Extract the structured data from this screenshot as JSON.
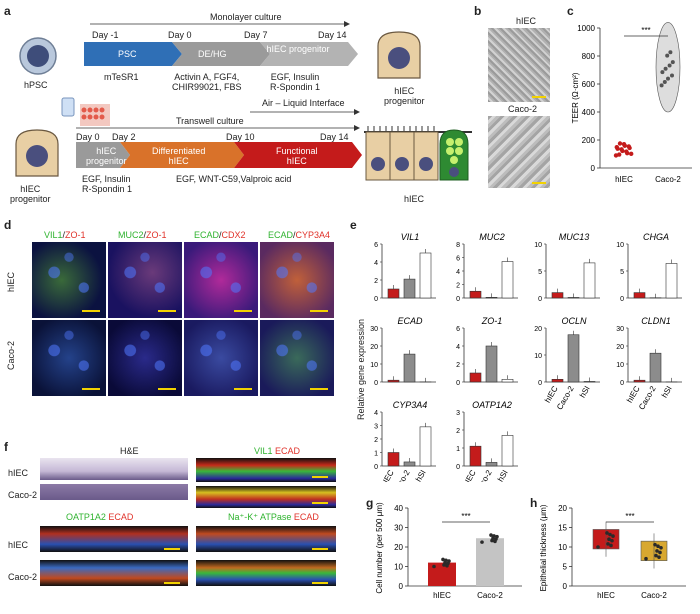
{
  "panels": [
    "a",
    "b",
    "c",
    "d",
    "e",
    "f",
    "g",
    "h"
  ],
  "a": {
    "hPSC": "hPSC",
    "monolayer": "Monolayer culture",
    "days_top": [
      "Day -1",
      "Day 0",
      "Day 7",
      "Day 14"
    ],
    "stages_top": [
      "PSC",
      "DE/HG",
      "hIEC progenitor"
    ],
    "media_top": [
      "mTeSR1",
      "Activin A, FGF4,\nCHIR99021, FBS",
      "EGF, Insulin\nR-Spondin 1"
    ],
    "progenitor_top": "hIEC\nprogenitor",
    "transwell": "Transwell culture",
    "ali": "Air – Liquid Interface",
    "days_bot": [
      "Day 0",
      "Day 2",
      "Day 10",
      "Day 14"
    ],
    "stages_bot": [
      "hIEC\nprogenitor",
      "Differentiated\nhIEC",
      "Functional\nhIEC"
    ],
    "media_bot": [
      "EGF, Insulin\nR-Spondin 1",
      "EGF, WNT-C59,Valproic acid"
    ],
    "progenitor_bot": "hIEC\nprogenitor",
    "hiec": "hIEC"
  },
  "b": {
    "top": "hIEC",
    "bottom": "Caco-2"
  },
  "c": {
    "ylabel": "TEER (Ω·cm²)",
    "yticks": [
      "0",
      "200",
      "400",
      "600",
      "800",
      "1000"
    ],
    "sig": "***",
    "groups": [
      "hIEC",
      "Caco-2"
    ]
  },
  "d": {
    "cols": [
      {
        "a": "VIL1",
        "b": "ZO-1"
      },
      {
        "a": "MUC2",
        "b": "ZO-1"
      },
      {
        "a": "ECAD",
        "b": "CDX2"
      },
      {
        "a": "ECAD",
        "b": "CYP3A4"
      }
    ],
    "rows": [
      "hIEC",
      "Caco-2"
    ]
  },
  "e": {
    "ylabel": "Relative gene expression",
    "groups": [
      "hIEC",
      "Caco-2",
      "hSI"
    ],
    "charts": [
      {
        "title": "VIL1"
      },
      {
        "title": "MUC2"
      },
      {
        "title": "MUC13"
      },
      {
        "title": "CHGA"
      },
      {
        "title": "ECAD"
      },
      {
        "title": "ZO-1"
      },
      {
        "title": "OCLN"
      },
      {
        "title": "CLDN1"
      },
      {
        "title": "CYP3A4"
      },
      {
        "title": "OATP1A2"
      }
    ]
  },
  "f": {
    "he": "H&E",
    "vil1": "VIL1",
    "ecad": "ECAD",
    "oatp": "OATP1A2",
    "nak": "Na⁺-K⁺ ATPase",
    "rows": [
      "hIEC",
      "Caco-2",
      "hIEC",
      "Caco-2"
    ]
  },
  "g": {
    "ylabel": "Cell number (per 500 μm)",
    "yticks": [
      "0",
      "10",
      "20",
      "30",
      "40"
    ],
    "groups": [
      "hIEC",
      "Caco-2"
    ],
    "sig": "***"
  },
  "h": {
    "ylabel": "Epithelial thickness (μm)",
    "yticks": [
      "0",
      "5",
      "10",
      "15",
      "20"
    ],
    "groups": [
      "hIEC",
      "Caco-2"
    ],
    "sig": "***"
  },
  "colors": {
    "blue": "#2f6fb6",
    "gray": "#9a9a9a",
    "orange": "#d9722a",
    "red": "#c41b1b",
    "gray_bar": "#8c8c8c"
  },
  "chart_data": [
    {
      "type": "scatter",
      "panel": "c",
      "categories": [
        "hIEC",
        "Caco-2"
      ],
      "series": [
        {
          "values": [
            130,
            720
          ]
        }
      ],
      "ylabel": "TEER (Ω·cm²)",
      "ylim": [
        0,
        1000
      ]
    },
    {
      "type": "bar",
      "panel": "e",
      "categories": [
        "hIEC",
        "Caco-2",
        "hSI"
      ],
      "subcharts": [
        {
          "title": "VIL1",
          "values": [
            1,
            2.1,
            5
          ],
          "ylim": [
            0,
            6
          ],
          "yticks": [
            0,
            2,
            4,
            6
          ]
        },
        {
          "title": "MUC2",
          "values": [
            1,
            0.1,
            5.4
          ],
          "ylim": [
            0,
            8
          ],
          "yticks": [
            0,
            2,
            4,
            6,
            8
          ]
        },
        {
          "title": "MUC13",
          "values": [
            1,
            0.1,
            6.5
          ],
          "ylim": [
            0,
            10
          ],
          "yticks": [
            0,
            5,
            10
          ]
        },
        {
          "title": "CHGA",
          "values": [
            1,
            0.05,
            6.4
          ],
          "ylim": [
            0,
            10
          ],
          "yticks": [
            0,
            5,
            10
          ]
        },
        {
          "title": "ECAD",
          "values": [
            1,
            15.5,
            0.1
          ],
          "ylim": [
            0,
            30
          ],
          "yticks": [
            0,
            10,
            20,
            30
          ]
        },
        {
          "title": "ZO-1",
          "values": [
            1,
            4,
            0.3
          ],
          "ylim": [
            0,
            6
          ],
          "yticks": [
            0,
            2,
            4,
            6
          ]
        },
        {
          "title": "OCLN",
          "values": [
            1,
            17.5,
            0.2
          ],
          "ylim": [
            0,
            20
          ],
          "yticks": [
            0,
            10,
            20
          ]
        },
        {
          "title": "CLDN1",
          "values": [
            1,
            16,
            0.1
          ],
          "ylim": [
            0,
            30
          ],
          "yticks": [
            0,
            10,
            20,
            30
          ]
        },
        {
          "title": "CYP3A4",
          "values": [
            1,
            0.3,
            2.9
          ],
          "ylim": [
            0,
            4
          ],
          "yticks": [
            0,
            1,
            2,
            3,
            4
          ]
        },
        {
          "title": "OATP1A2",
          "values": [
            1.1,
            0.2,
            1.7
          ],
          "ylim": [
            0,
            3
          ],
          "yticks": [
            0,
            1,
            2,
            3
          ]
        }
      ]
    },
    {
      "type": "bar",
      "panel": "g",
      "categories": [
        "hIEC",
        "Caco-2"
      ],
      "values": [
        12,
        24.5
      ],
      "ylim": [
        0,
        40
      ],
      "ylabel": "Cell number (per 500 μm)"
    },
    {
      "type": "bar",
      "panel": "h",
      "categories": [
        "hIEC",
        "Caco-2"
      ],
      "values": [
        12,
        9
      ],
      "ylim": [
        0,
        20
      ],
      "ylabel": "Epithelial thickness (μm)"
    }
  ]
}
